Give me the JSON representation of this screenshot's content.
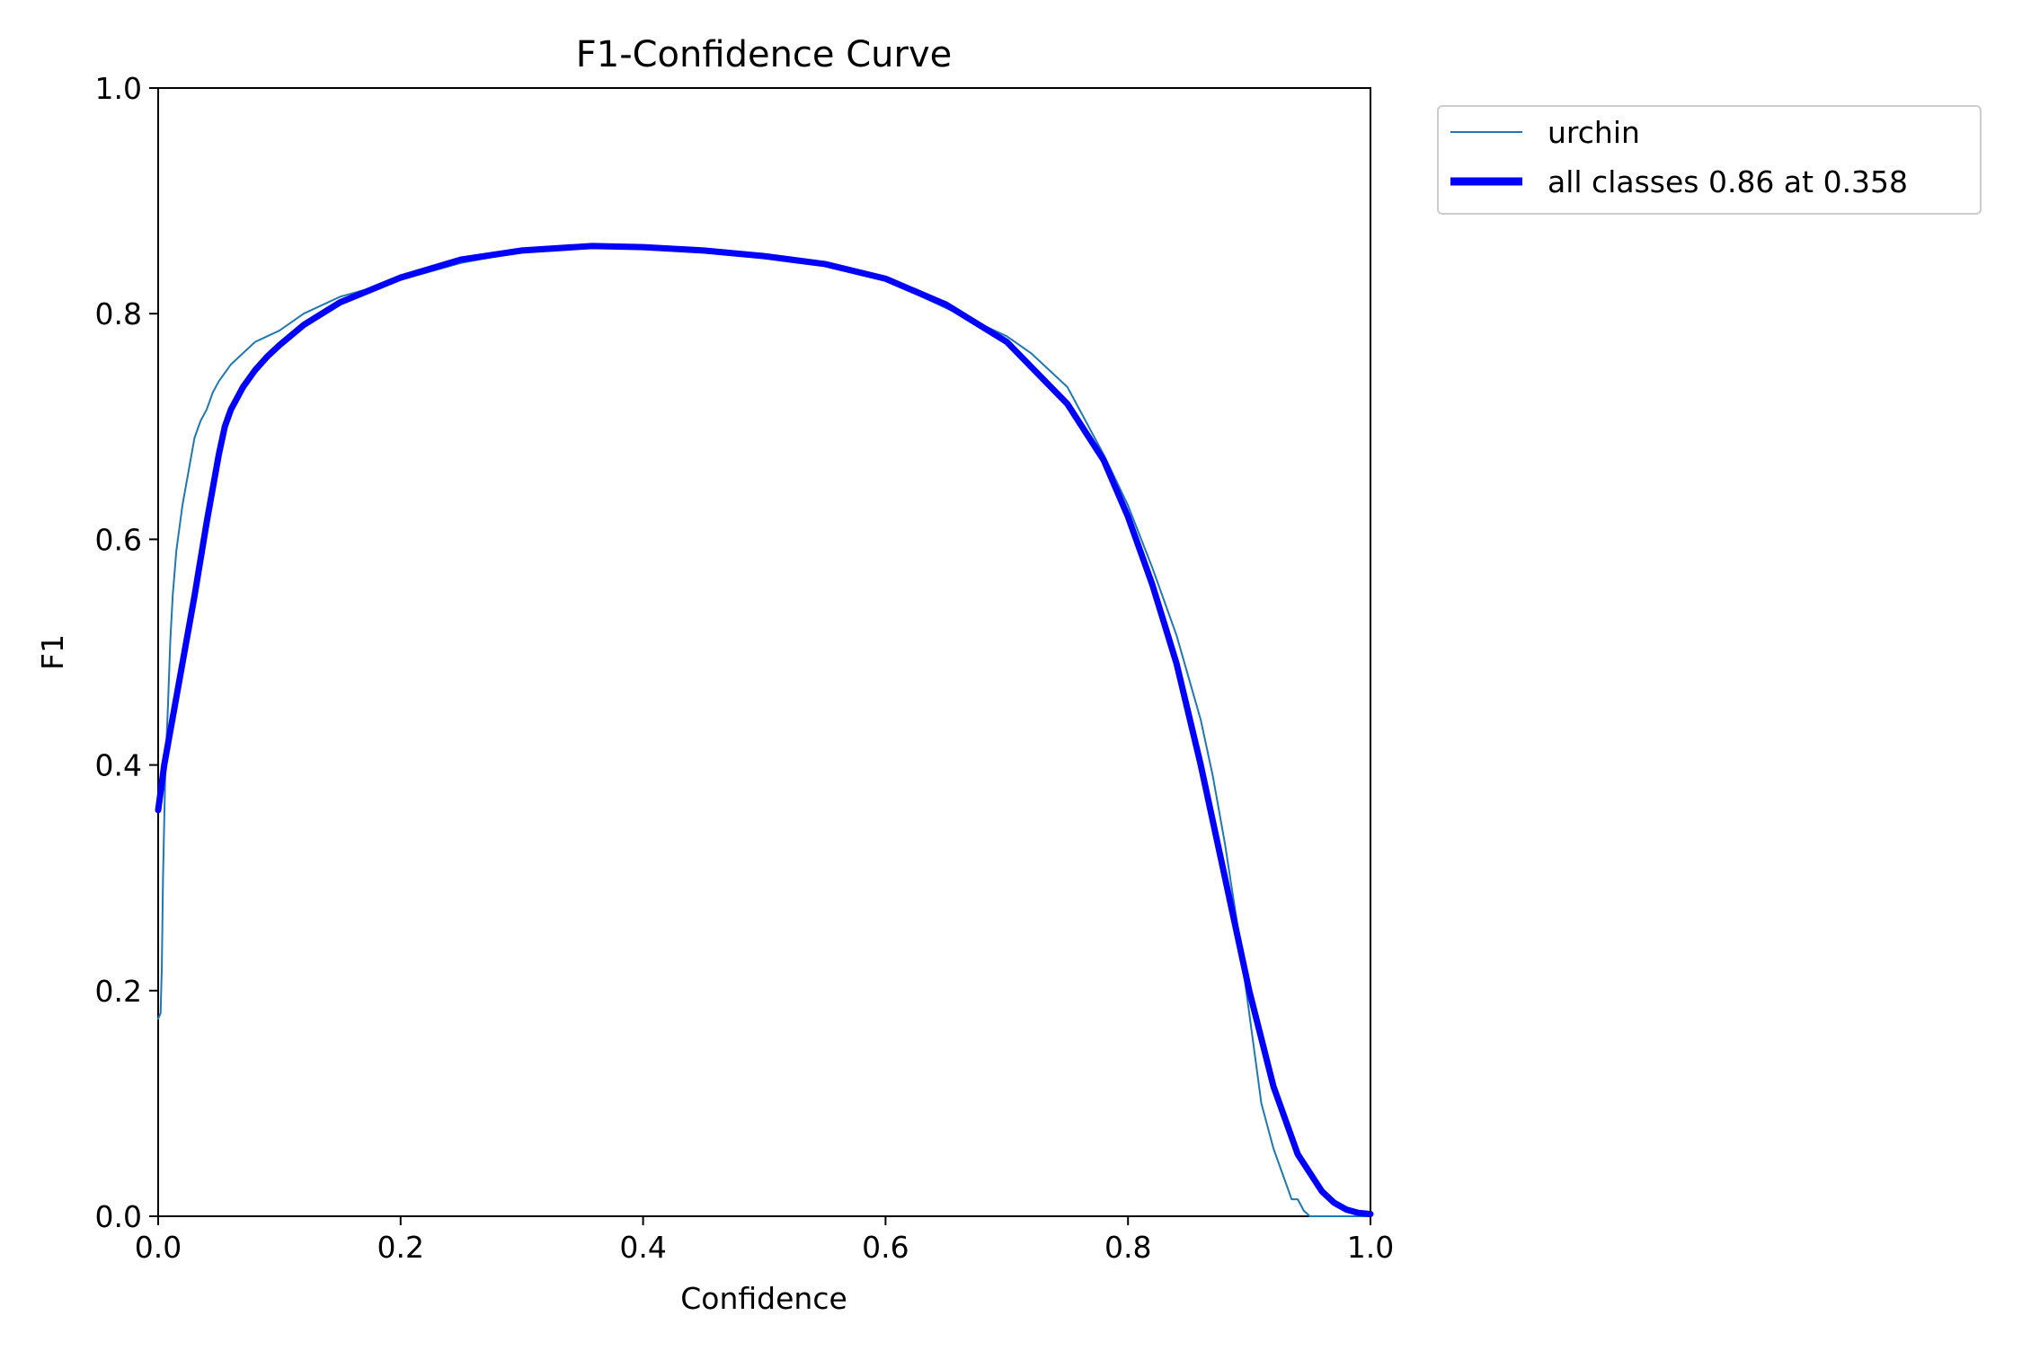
{
  "chart_data": {
    "type": "line",
    "title": "F1-Confidence Curve",
    "xlabel": "Confidence",
    "ylabel": "F1",
    "xlim": [
      0.0,
      1.0
    ],
    "ylim": [
      0.0,
      1.0
    ],
    "xticks": [
      0.0,
      0.2,
      0.4,
      0.6,
      0.8,
      1.0
    ],
    "xtick_labels": [
      "0.0",
      "0.2",
      "0.4",
      "0.6",
      "0.8",
      "1.0"
    ],
    "yticks": [
      0.0,
      0.2,
      0.4,
      0.6,
      0.8,
      1.0
    ],
    "ytick_labels": [
      "0.0",
      "0.2",
      "0.4",
      "0.6",
      "0.8",
      "1.0"
    ],
    "grid": false,
    "legend_position": "outside-top-right",
    "series": [
      {
        "name": "urchin",
        "color": "#1f77b4",
        "x": [
          0.0,
          0.002,
          0.003,
          0.004,
          0.006,
          0.008,
          0.01,
          0.012,
          0.015,
          0.02,
          0.025,
          0.03,
          0.035,
          0.04,
          0.045,
          0.05,
          0.06,
          0.07,
          0.08,
          0.09,
          0.1,
          0.12,
          0.15,
          0.2,
          0.25,
          0.3,
          0.35,
          0.4,
          0.45,
          0.5,
          0.55,
          0.6,
          0.65,
          0.7,
          0.72,
          0.75,
          0.78,
          0.8,
          0.82,
          0.84,
          0.86,
          0.87,
          0.88,
          0.89,
          0.9,
          0.91,
          0.92,
          0.93,
          0.935,
          0.94,
          0.945,
          0.95,
          0.96,
          1.0
        ],
        "y": [
          0.175,
          0.18,
          0.22,
          0.3,
          0.4,
          0.45,
          0.51,
          0.55,
          0.59,
          0.63,
          0.66,
          0.69,
          0.705,
          0.715,
          0.73,
          0.74,
          0.755,
          0.765,
          0.775,
          0.78,
          0.785,
          0.8,
          0.815,
          0.83,
          0.845,
          0.855,
          0.86,
          0.86,
          0.857,
          0.852,
          0.845,
          0.83,
          0.805,
          0.78,
          0.765,
          0.735,
          0.675,
          0.63,
          0.575,
          0.515,
          0.44,
          0.39,
          0.33,
          0.26,
          0.18,
          0.1,
          0.06,
          0.03,
          0.015,
          0.015,
          0.005,
          0.0,
          0.0,
          0.0
        ]
      },
      {
        "name": "all classes 0.86 at 0.358",
        "color": "#0000ff",
        "x": [
          0.0,
          0.005,
          0.01,
          0.02,
          0.03,
          0.04,
          0.05,
          0.055,
          0.06,
          0.07,
          0.08,
          0.09,
          0.1,
          0.12,
          0.15,
          0.2,
          0.25,
          0.3,
          0.358,
          0.4,
          0.45,
          0.5,
          0.55,
          0.6,
          0.65,
          0.7,
          0.75,
          0.78,
          0.8,
          0.82,
          0.84,
          0.86,
          0.88,
          0.9,
          0.92,
          0.94,
          0.96,
          0.97,
          0.98,
          0.99,
          1.0
        ],
        "y": [
          0.36,
          0.4,
          0.43,
          0.49,
          0.55,
          0.615,
          0.675,
          0.7,
          0.715,
          0.735,
          0.75,
          0.762,
          0.772,
          0.79,
          0.81,
          0.832,
          0.848,
          0.856,
          0.86,
          0.859,
          0.856,
          0.851,
          0.844,
          0.831,
          0.808,
          0.775,
          0.72,
          0.67,
          0.62,
          0.56,
          0.49,
          0.4,
          0.3,
          0.2,
          0.115,
          0.055,
          0.022,
          0.012,
          0.006,
          0.003,
          0.002
        ]
      }
    ]
  }
}
